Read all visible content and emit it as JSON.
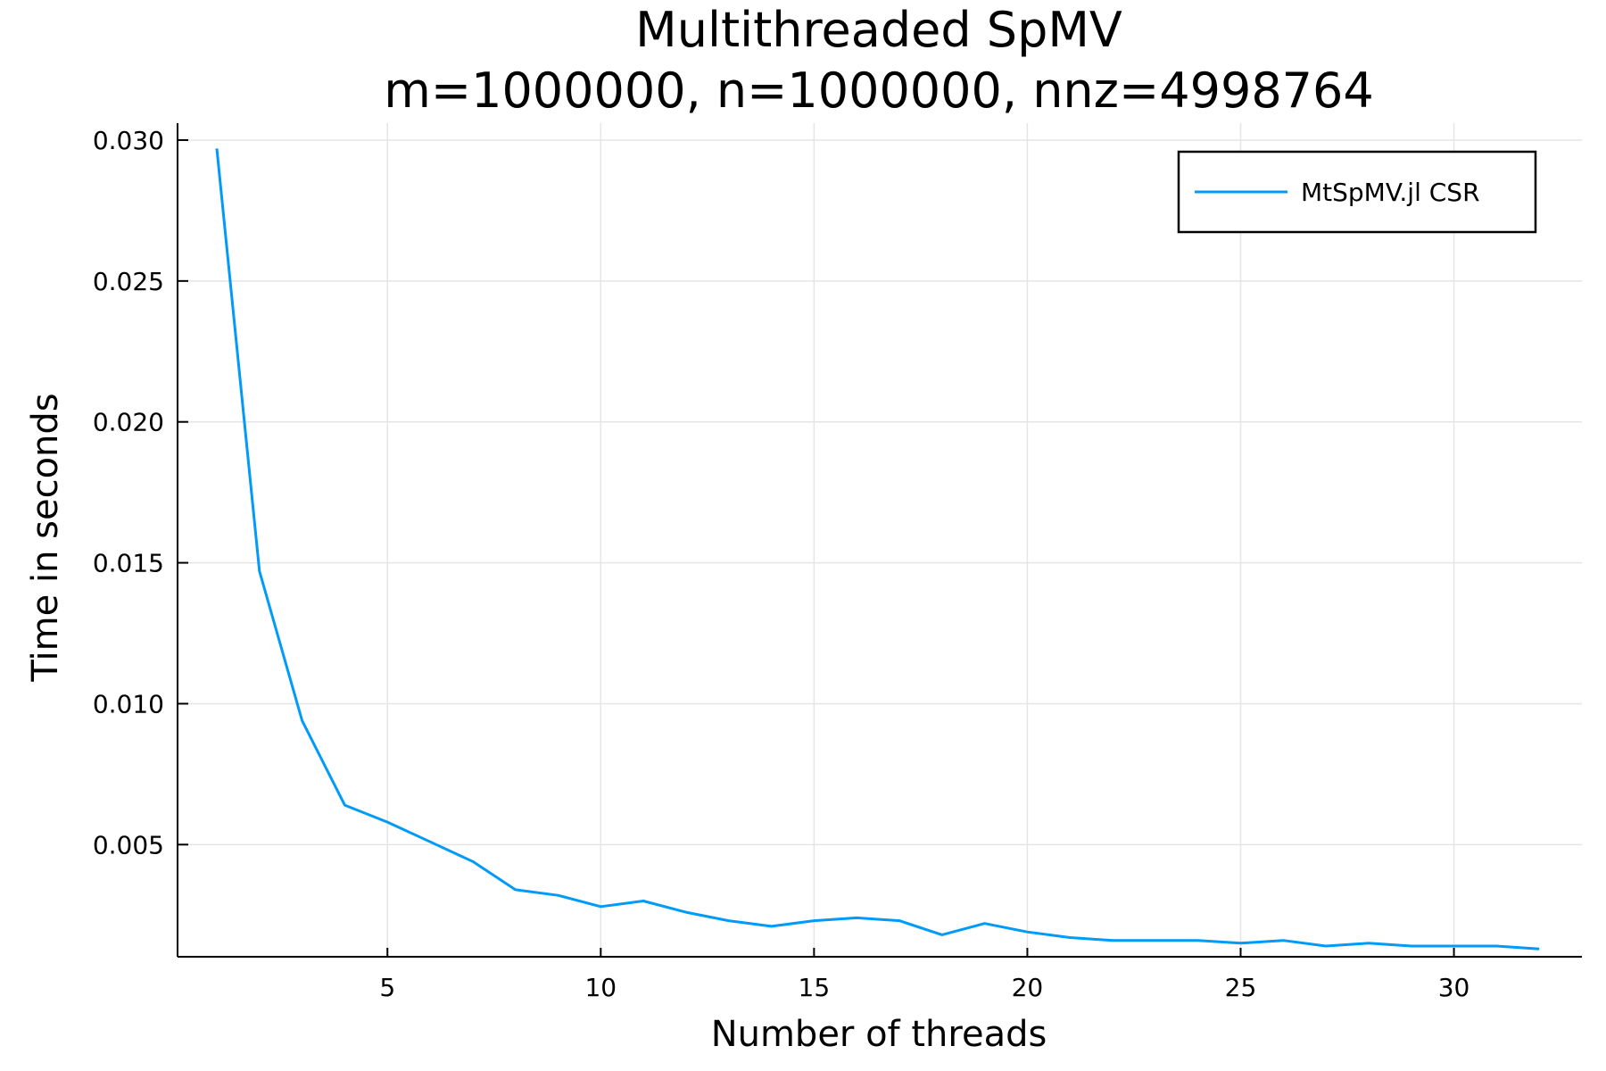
{
  "chart_data": {
    "type": "line",
    "title": "Multithreaded SpMV",
    "subtitle": "m=1000000, n=1000000, nnz=4998764",
    "xlabel": "Number of threads",
    "ylabel": "Time in seconds",
    "xlim": [
      0.08,
      33
    ],
    "ylim": [
      0.00102,
      0.0306
    ],
    "xticks": [
      5,
      10,
      15,
      20,
      25,
      30
    ],
    "yticks": [
      0.005,
      0.01,
      0.015,
      0.02,
      0.025,
      0.03
    ],
    "ytick_labels": [
      "0.005",
      "0.010",
      "0.015",
      "0.020",
      "0.025",
      "0.030"
    ],
    "grid": true,
    "legend_position": "top-right",
    "series": [
      {
        "name": "MtSpMV.jl CSR",
        "color": "#009af9",
        "x": [
          1,
          2,
          3,
          4,
          5,
          6,
          7,
          8,
          9,
          10,
          11,
          12,
          13,
          14,
          15,
          16,
          17,
          18,
          19,
          20,
          21,
          22,
          23,
          24,
          25,
          26,
          27,
          28,
          29,
          30,
          31,
          32
        ],
        "y": [
          0.0297,
          0.0147,
          0.0094,
          0.0064,
          0.0058,
          0.0051,
          0.0044,
          0.0034,
          0.0032,
          0.0028,
          0.003,
          0.0026,
          0.0023,
          0.0021,
          0.0023,
          0.0024,
          0.0023,
          0.0018,
          0.0022,
          0.0019,
          0.0017,
          0.0016,
          0.0016,
          0.0016,
          0.0015,
          0.0016,
          0.0014,
          0.0015,
          0.0014,
          0.0014,
          0.0014,
          0.0013
        ]
      }
    ]
  }
}
